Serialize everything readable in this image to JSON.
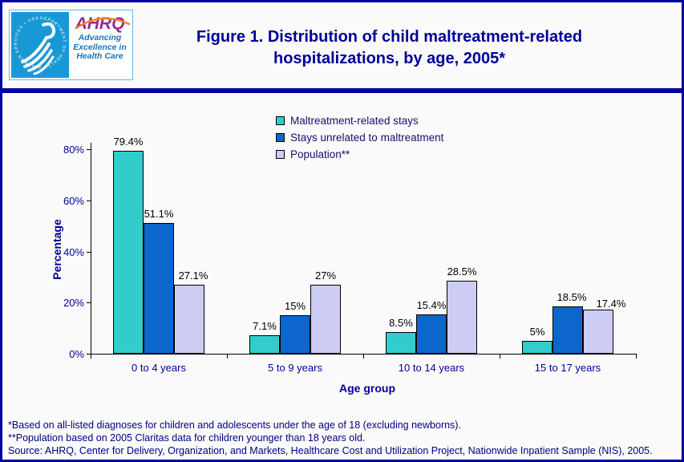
{
  "header": {
    "title": "Figure 1. Distribution of child maltreatment-related hospitalizations, by age, 2005*",
    "logo": {
      "ahrq_text": "AHRQ",
      "tagline_lines": [
        "Advancing",
        "Excellence in",
        "Health Care"
      ],
      "seal_text": "DEPARTMENT OF HEALTH & HUMAN SERVICES • USA"
    }
  },
  "chart_data": {
    "type": "bar",
    "title": "Figure 1. Distribution of child maltreatment-related hospitalizations, by age, 2005*",
    "categories": [
      "0 to 4 years",
      "5 to 9 years",
      "10 to 14 years",
      "15 to 17 years"
    ],
    "series": [
      {
        "name": "Maltreatment-related stays",
        "color": "#33CCCC",
        "values": [
          79.4,
          7.1,
          8.5,
          5.0
        ]
      },
      {
        "name": "Stays unrelated to maltreatment",
        "color": "#0C66CC",
        "values": [
          51.1,
          15.0,
          15.4,
          18.5
        ]
      },
      {
        "name": "Population**",
        "color": "#CCCCF5",
        "values": [
          27.1,
          27.0,
          28.5,
          17.4
        ]
      }
    ],
    "xlabel": "Age group",
    "ylabel": "Percentage",
    "ylim": [
      0,
      80
    ],
    "yticks": [
      0,
      20,
      40,
      60,
      80
    ],
    "ytick_format": "{v}%",
    "data_label_format": "{v}%",
    "grid": false,
    "legend_position": "top-center"
  },
  "footnotes": [
    "*Based on all-listed diagnoses for children and adolescents under the age of 18 (excluding newborns).",
    "**Population based on 2005 Claritas data for children younger than 18 years old.",
    "Source: AHRQ, Center for Delivery, Organization, and Markets, Healthcare Cost and Utilization Project, Nationwide Inpatient Sample (NIS), 2005."
  ],
  "colors": {
    "border_navy": "#0000A0",
    "title_navy": "#000099",
    "footnote_navy": "#000080",
    "seal_blue": "#1899D6",
    "ahrq_purple": "#982B90",
    "ahrq_blue": "#1B75BC",
    "swoosh_orange": "#F5821F"
  }
}
